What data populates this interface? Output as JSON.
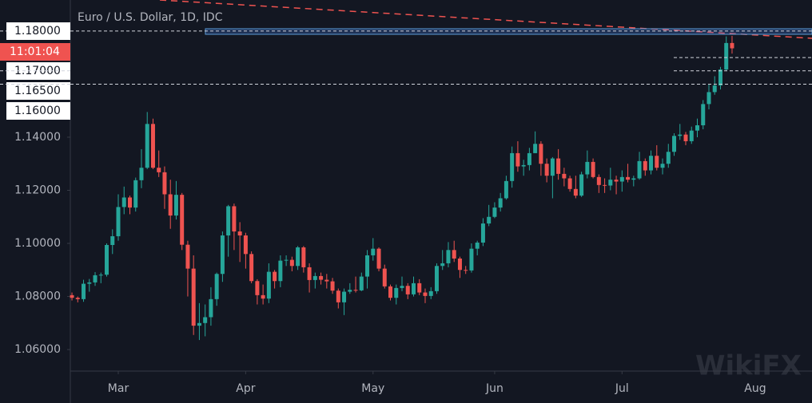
{
  "chart_data": {
    "type": "candlestick",
    "title": "Euro / U.S. Dollar, 1D, IDC",
    "countdown": "11:01:04",
    "watermark": "WikiFX",
    "up_color": "#26a69a",
    "down_color": "#ef5350",
    "ylim": [
      1.0519,
      1.1917
    ],
    "yticks": [
      {
        "value": 1.06,
        "label": "1.06000"
      },
      {
        "value": 1.08,
        "label": "1.08000"
      },
      {
        "value": 1.1,
        "label": "1.10000"
      },
      {
        "value": 1.12,
        "label": "1.12000"
      },
      {
        "value": 1.14,
        "label": "1.14000"
      }
    ],
    "price_lines": [
      {
        "value": 1.18,
        "label": "1.18000",
        "extent": "full"
      },
      {
        "value": 1.17,
        "label": "1.17000",
        "extent": "short"
      },
      {
        "value": 1.165,
        "label": "1.16500",
        "extent": "short"
      },
      {
        "value": 1.16,
        "label": "1.16000",
        "extent": "full"
      }
    ],
    "categories": [
      null,
      null,
      null,
      null,
      null,
      null,
      null,
      null,
      "Mar",
      null,
      null,
      null,
      null,
      null,
      null,
      null,
      null,
      null,
      null,
      null,
      null,
      null,
      null,
      null,
      null,
      null,
      null,
      null,
      null,
      null,
      "Apr",
      null,
      null,
      null,
      null,
      null,
      null,
      null,
      null,
      null,
      null,
      null,
      null,
      null,
      null,
      null,
      null,
      null,
      null,
      null,
      null,
      null,
      "May",
      null,
      null,
      null,
      null,
      null,
      null,
      null,
      null,
      null,
      null,
      null,
      null,
      null,
      null,
      null,
      null,
      null,
      null,
      null,
      null,
      "Jun",
      null,
      null,
      null,
      null,
      null,
      null,
      null,
      null,
      null,
      null,
      null,
      null,
      null,
      null,
      null,
      null,
      null,
      null,
      null,
      null,
      null,
      "Jul",
      null,
      null,
      null,
      null,
      null,
      null,
      null,
      null,
      null,
      null,
      null,
      null,
      null,
      null,
      null,
      null,
      null,
      null,
      null,
      null,
      null,
      null,
      "Aug",
      null
    ],
    "open": [
      1.0805,
      1.0795,
      1.079,
      1.0848,
      1.0853,
      1.088,
      1.0882,
      1.0994,
      1.1027,
      1.1137,
      1.1173,
      1.1135,
      1.1238,
      1.1285,
      1.145,
      1.1285,
      1.1268,
      1.1185,
      1.1105,
      1.1183,
      1.0995,
      1.0905,
      1.069,
      1.07,
      1.0722,
      1.079,
      1.0885,
      1.103,
      1.114,
      1.1045,
      1.103,
      1.096,
      1.0858,
      1.0805,
      1.0792,
      1.0893,
      1.0858,
      1.0935,
      1.0938,
      1.0915,
      1.0985,
      1.091,
      1.0862,
      1.0877,
      1.0863,
      1.0857,
      1.0822,
      1.0778,
      1.0818,
      1.0825,
      1.0823,
      1.0875,
      1.0955,
      1.098,
      1.0905,
      1.0838,
      1.0795,
      1.0832,
      1.084,
      1.0808,
      1.085,
      1.0815,
      1.0802,
      1.082,
      1.0915,
      1.0925,
      1.0975,
      1.0943,
      1.09,
      1.0898,
      1.098,
      1.1003,
      1.1075,
      1.11,
      1.1135,
      1.117,
      1.1235,
      1.134,
      1.129,
      1.1295,
      1.134,
      1.1375,
      1.13,
      1.1255,
      1.132,
      1.1262,
      1.1245,
      1.1205,
      1.118,
      1.126,
      1.1307,
      1.125,
      1.122,
      1.1218,
      1.124,
      1.1233,
      1.125,
      1.124,
      1.1245,
      1.131,
      1.1275,
      1.133,
      1.1285,
      1.13,
      1.1345,
      1.1405,
      1.141,
      1.1385,
      1.1425,
      1.1445,
      1.1525,
      1.157,
      1.1595,
      1.1655,
      1.1755,
      null,
      null,
      null,
      null,
      null
    ],
    "high": [
      1.0815,
      1.08,
      1.0863,
      1.0866,
      1.0892,
      1.089,
      1.1,
      1.1053,
      1.1185,
      1.1214,
      1.118,
      1.1248,
      1.1355,
      1.1495,
      1.147,
      1.135,
      1.129,
      1.124,
      1.1235,
      1.119,
      1.101,
      1.0955,
      1.0775,
      1.077,
      1.0835,
      1.089,
      1.1045,
      1.1145,
      1.115,
      1.108,
      1.104,
      1.097,
      1.0865,
      1.0845,
      1.0925,
      1.09,
      1.0955,
      1.0955,
      1.095,
      1.099,
      1.099,
      1.0925,
      1.089,
      1.089,
      1.0885,
      1.087,
      1.083,
      1.083,
      1.085,
      1.0875,
      1.089,
      1.0975,
      1.102,
      1.0985,
      1.092,
      1.0845,
      1.0845,
      1.0875,
      1.085,
      1.0875,
      1.0865,
      1.083,
      1.0835,
      1.0925,
      1.0975,
      1.1005,
      1.101,
      1.095,
      1.0915,
      1.1,
      1.101,
      1.1095,
      1.1145,
      1.1155,
      1.119,
      1.1255,
      1.1365,
      1.1385,
      1.1315,
      1.136,
      1.1422,
      1.1385,
      1.132,
      1.1325,
      1.1355,
      1.1285,
      1.1255,
      1.1255,
      1.127,
      1.135,
      1.132,
      1.126,
      1.1245,
      1.1285,
      1.1255,
      1.1275,
      1.13,
      1.1255,
      1.1345,
      1.132,
      1.135,
      1.137,
      1.132,
      1.1375,
      1.1415,
      1.145,
      1.142,
      1.144,
      1.147,
      1.154,
      1.16,
      1.163,
      1.1665,
      1.178,
      1.1782,
      null,
      null,
      null,
      null,
      null
    ],
    "low": [
      1.0785,
      1.0778,
      1.078,
      1.0818,
      1.084,
      1.085,
      1.0875,
      1.096,
      1.101,
      1.111,
      1.111,
      1.112,
      1.1208,
      1.128,
      1.128,
      1.125,
      1.113,
      1.1055,
      1.109,
      1.0975,
      1.08,
      1.0655,
      1.0636,
      1.065,
      1.069,
      1.0765,
      1.0855,
      1.095,
      1.0975,
      1.093,
      1.0905,
      1.085,
      1.077,
      1.077,
      1.0775,
      1.083,
      1.0835,
      1.0915,
      1.0895,
      1.09,
      1.089,
      1.0815,
      1.083,
      1.0845,
      1.083,
      1.081,
      1.0755,
      1.073,
      1.081,
      1.0815,
      1.082,
      1.083,
      1.0935,
      1.0895,
      1.083,
      1.0785,
      1.077,
      1.082,
      1.079,
      1.08,
      1.0805,
      1.0775,
      1.079,
      1.081,
      1.09,
      1.091,
      1.093,
      1.087,
      1.0885,
      1.089,
      1.0955,
      1.099,
      1.1065,
      1.1095,
      1.112,
      1.1165,
      1.121,
      1.127,
      1.1255,
      1.1275,
      1.134,
      1.1255,
      1.123,
      1.117,
      1.124,
      1.1215,
      1.1195,
      1.117,
      1.1175,
      1.1245,
      1.1245,
      1.119,
      1.119,
      1.12,
      1.1185,
      1.1195,
      1.123,
      1.1215,
      1.124,
      1.1255,
      1.126,
      1.1275,
      1.126,
      1.1285,
      1.133,
      1.139,
      1.137,
      1.1375,
      1.14,
      1.143,
      1.1505,
      1.156,
      1.158,
      1.165,
      1.1715,
      null,
      null,
      null,
      null,
      null
    ],
    "close": [
      1.0795,
      1.079,
      1.0848,
      1.0853,
      1.088,
      1.0882,
      1.0994,
      1.1027,
      1.1137,
      1.1173,
      1.1135,
      1.1238,
      1.1285,
      1.145,
      1.1285,
      1.1268,
      1.1185,
      1.1105,
      1.1183,
      1.0995,
      1.0905,
      1.069,
      1.07,
      1.0722,
      1.079,
      1.0885,
      1.103,
      1.114,
      1.1045,
      1.103,
      1.096,
      1.0858,
      1.0805,
      1.0792,
      1.0893,
      1.0858,
      1.0935,
      1.0938,
      1.0915,
      1.0985,
      1.091,
      1.0862,
      1.0877,
      1.0863,
      1.0857,
      1.0822,
      1.0778,
      1.0818,
      1.0825,
      1.0823,
      1.0875,
      1.0955,
      1.098,
      1.0905,
      1.0838,
      1.0795,
      1.0832,
      1.084,
      1.0808,
      1.085,
      1.0815,
      1.0802,
      1.082,
      1.0915,
      1.0925,
      1.0975,
      1.0943,
      1.09,
      1.0898,
      1.098,
      1.1003,
      1.1075,
      1.11,
      1.1135,
      1.117,
      1.1235,
      1.134,
      1.129,
      1.1295,
      1.134,
      1.1375,
      1.13,
      1.1255,
      1.132,
      1.1262,
      1.1245,
      1.1205,
      1.118,
      1.126,
      1.1307,
      1.125,
      1.122,
      1.1218,
      1.124,
      1.1233,
      1.125,
      1.124,
      1.1245,
      1.131,
      1.1275,
      1.133,
      1.1285,
      1.13,
      1.1345,
      1.1405,
      1.141,
      1.1385,
      1.1425,
      1.1445,
      1.1525,
      1.157,
      1.1595,
      1.1655,
      1.1755,
      1.1735,
      null,
      null,
      null,
      null,
      null
    ]
  }
}
